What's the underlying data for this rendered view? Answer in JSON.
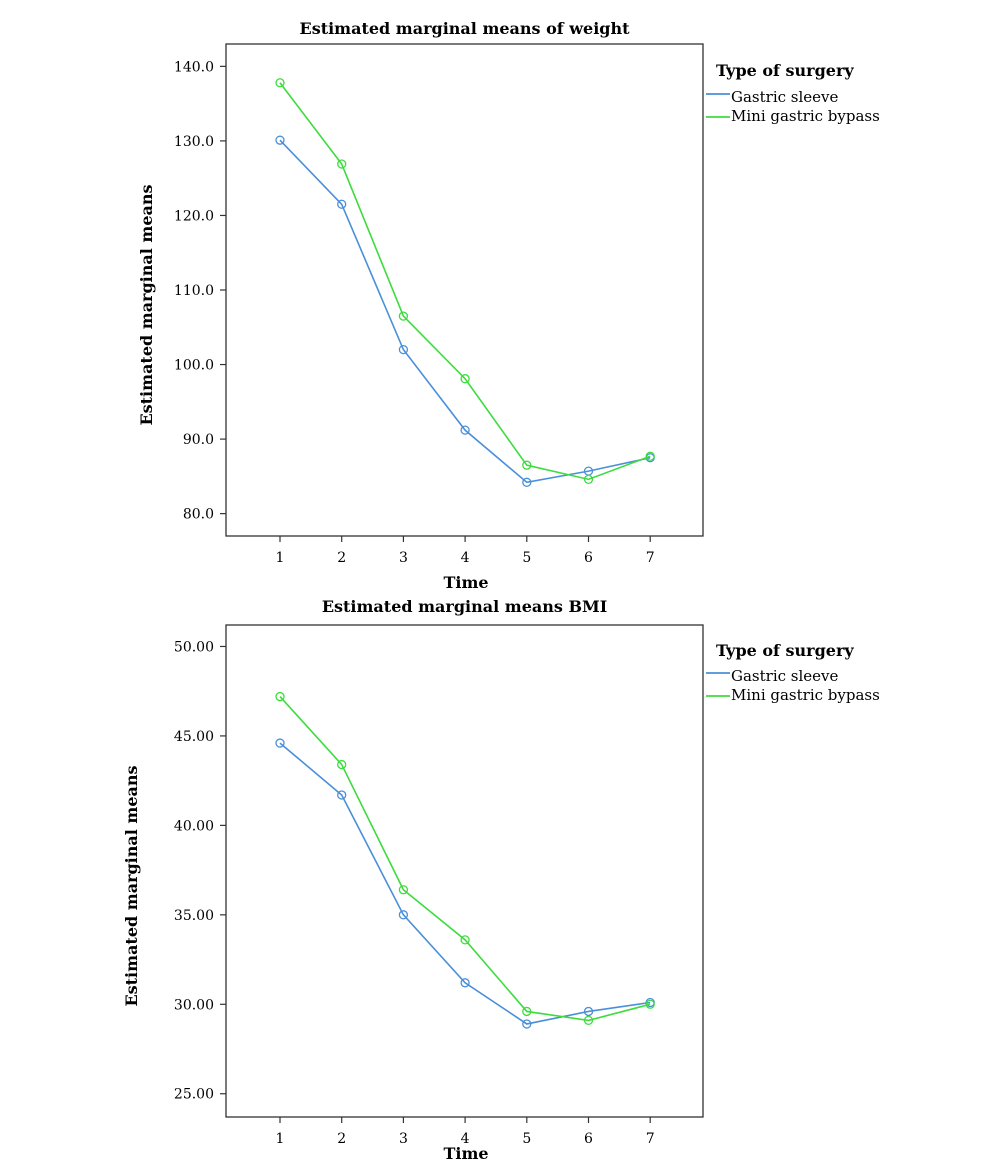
{
  "chart_data": [
    {
      "type": "line",
      "title": "Estimated marginal means of weight",
      "xlabel": "Time",
      "ylabel": "Estimated marginal means",
      "categories": [
        "1",
        "2",
        "3",
        "4",
        "5",
        "6",
        "7"
      ],
      "ylim": [
        77.0,
        143.0
      ],
      "yticks": [
        "80.0",
        "90.0",
        "100.0",
        "110.0",
        "120.0",
        "130.0",
        "140.0"
      ],
      "legend": {
        "title": "Type of surgery",
        "placement": "right"
      },
      "series": [
        {
          "name": "Gastric sleeve",
          "color": "#4a8fd9",
          "values": [
            130.1,
            121.5,
            102.0,
            91.2,
            84.2,
            85.7,
            87.5
          ]
        },
        {
          "name": "Mini gastric bypass",
          "color": "#3ddc3d",
          "values": [
            137.8,
            126.9,
            106.5,
            98.1,
            86.5,
            84.6,
            87.7
          ]
        }
      ],
      "grid": false
    },
    {
      "type": "line",
      "title": "Estimated marginal means BMI",
      "xlabel": "Time",
      "ylabel": "Estimated marginal means",
      "categories": [
        "1",
        "2",
        "3",
        "4",
        "5",
        "6",
        "7"
      ],
      "ylim": [
        23.7,
        51.2
      ],
      "yticks": [
        "25.00",
        "30.00",
        "35.00",
        "40.00",
        "45.00",
        "50.00"
      ],
      "legend": {
        "title": "Type of surgery",
        "placement": "right"
      },
      "series": [
        {
          "name": "Gastric sleeve",
          "color": "#4a8fd9",
          "values": [
            44.6,
            41.7,
            35.0,
            31.2,
            28.9,
            29.6,
            30.1
          ]
        },
        {
          "name": "Mini gastric bypass",
          "color": "#3ddc3d",
          "values": [
            47.2,
            43.4,
            36.4,
            33.6,
            29.6,
            29.1,
            30.0
          ]
        }
      ],
      "grid": false
    }
  ]
}
